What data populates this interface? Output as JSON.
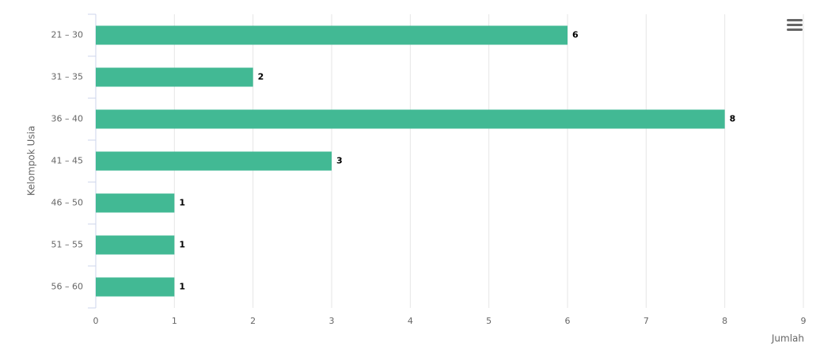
{
  "chart_data": {
    "type": "bar",
    "orientation": "horizontal",
    "categories": [
      "21 – 30",
      "31 – 35",
      "36 – 40",
      "41 – 45",
      "46 – 50",
      "51 – 55",
      "56 – 60"
    ],
    "values": [
      6,
      2,
      8,
      3,
      1,
      1,
      1
    ],
    "color": "#42b994",
    "x_label": "Jumlah",
    "y_label": "Kelompok Usia",
    "xlim": [
      0,
      9
    ],
    "xticks": [
      0,
      1,
      2,
      3,
      4,
      5,
      6,
      7,
      8,
      9
    ],
    "grid": true
  }
}
